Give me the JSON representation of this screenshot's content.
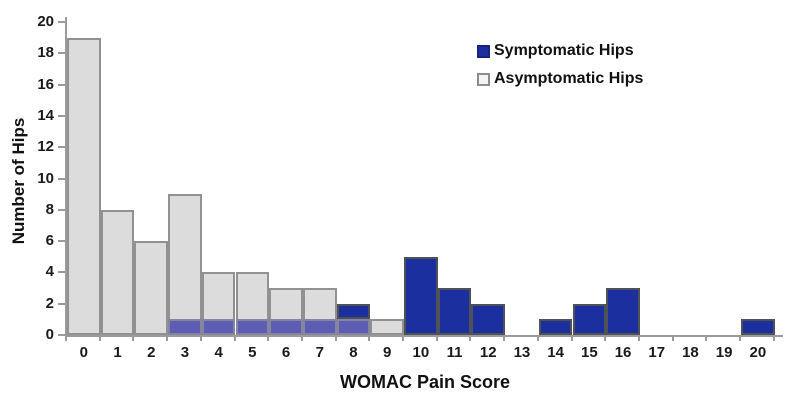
{
  "chart_data": {
    "type": "bar",
    "title": "",
    "xlabel": "WOMAC Pain Score",
    "ylabel": "Number of Hips",
    "categories": [
      0,
      1,
      2,
      3,
      4,
      5,
      6,
      7,
      8,
      9,
      10,
      11,
      12,
      13,
      14,
      15,
      16,
      17,
      18,
      19,
      20
    ],
    "ylim": [
      0,
      20
    ],
    "ytick_step": 2,
    "grid": false,
    "legend_position": "top-right",
    "bar_style": "overlaid-histogram",
    "series": [
      {
        "name": "Symptomatic Hips",
        "values": [
          0,
          0,
          0,
          1,
          1,
          1,
          1,
          1,
          2,
          0,
          5,
          3,
          2,
          0,
          1,
          2,
          3,
          0,
          0,
          0,
          1
        ],
        "color": "#1b2f9f",
        "border": "#4e5158",
        "legend_fill": "#1b2f9f",
        "legend_border": "#16267f"
      },
      {
        "name": "Asymptomatic Hips",
        "values": [
          19,
          8,
          6,
          9,
          4,
          4,
          3,
          3,
          1,
          1,
          0,
          0,
          0,
          0,
          0,
          0,
          0,
          0,
          0,
          0,
          0
        ],
        "color": "#dcdcdc",
        "border": "#919191",
        "legend_fill": "#f4f4f4",
        "legend_border": "#8c8c8c"
      }
    ],
    "overlap": {
      "note": "where symptomatic bars overlap asymptomatic bars (scores 3-8, height 1)",
      "color": "#5d5db5",
      "border": "#85859d"
    },
    "axis_color": "#9b9b9b",
    "text_color": "#1a1a1a"
  }
}
